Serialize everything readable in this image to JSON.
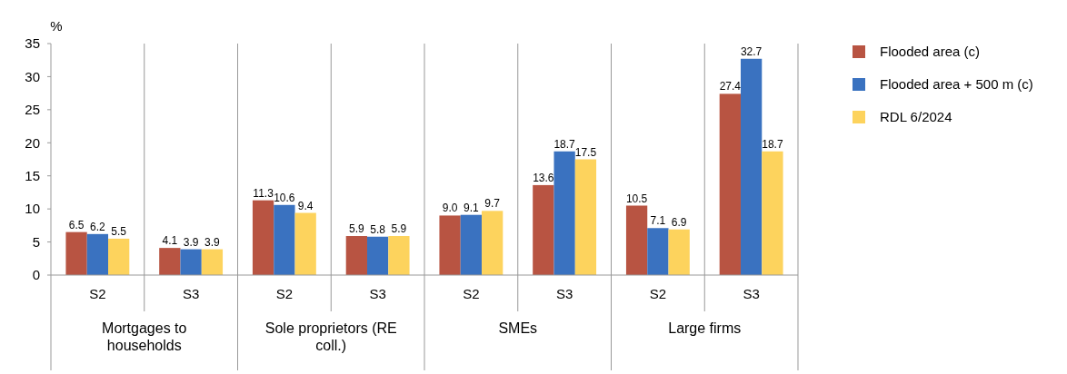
{
  "chart_data": {
    "type": "bar",
    "ylabel": "%",
    "categories": [
      "S2",
      "S3",
      "S2",
      "S3",
      "S2",
      "S3",
      "S2",
      "S3"
    ],
    "annotations": [
      "Mortgages to households",
      "Sole proprietors (RE coll.)",
      "SMEs",
      "Large firms"
    ],
    "series": [
      {
        "name": "Flooded area (c)",
        "color": "#b85442",
        "values": [
          6.5,
          4.1,
          11.3,
          5.9,
          9.0,
          13.6,
          10.5,
          27.4
        ],
        "value_labels": [
          "6.5",
          "4.1",
          "11.3",
          "5.9",
          "9.0",
          "13.6",
          "10.5",
          "27.4"
        ]
      },
      {
        "name": "Flooded area + 500 m (c)",
        "color": "#3a72c0",
        "values": [
          6.2,
          3.9,
          10.6,
          5.8,
          9.1,
          18.7,
          7.1,
          32.7
        ],
        "value_labels": [
          "6.2",
          "3.9",
          "10.6",
          "5.8",
          "9.1",
          "18.7",
          "7.1",
          "32.7"
        ]
      },
      {
        "name": "RDL 6/2024",
        "color": "#fdd35d",
        "values": [
          5.5,
          3.9,
          9.4,
          5.9,
          9.7,
          17.5,
          6.9,
          18.7
        ],
        "value_labels": [
          "5.5",
          "3.9",
          "9.4",
          "5.9",
          "9.7",
          "17.5",
          "6.9",
          "18.7"
        ]
      }
    ],
    "ylim": [
      0,
      35
    ],
    "yticks": [
      0,
      5,
      10,
      15,
      20,
      25,
      30,
      35
    ],
    "legend": "right"
  }
}
